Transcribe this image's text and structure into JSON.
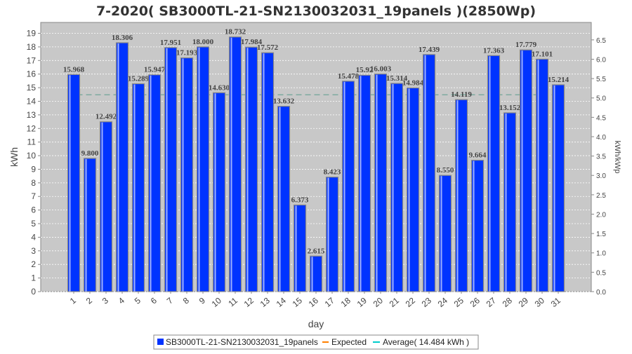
{
  "chart_data": {
    "type": "bar",
    "title": "7-2020( SB3000TL-21-SN2130032031_19panels )(2850Wp)",
    "xlabel": "day",
    "ylabel": "kWh",
    "y2label": "kWh/kWp",
    "ylim": [
      0,
      19.8
    ],
    "y2lim": [
      0,
      6.95
    ],
    "yticks": [
      0,
      1,
      2,
      3,
      4,
      5,
      6,
      7,
      8,
      9,
      10,
      11,
      12,
      13,
      14,
      15,
      16,
      17,
      18,
      19
    ],
    "y2ticks": [
      "0.0",
      "0.5",
      "1.0",
      "1.5",
      "2.0",
      "2.5",
      "3.0",
      "3.5",
      "4.0",
      "4.5",
      "5.0",
      "5.5",
      "6.0",
      "6.5"
    ],
    "categories": [
      "1",
      "2",
      "3",
      "4",
      "5",
      "6",
      "7",
      "8",
      "9",
      "10",
      "11",
      "12",
      "13",
      "14",
      "15",
      "16",
      "17",
      "18",
      "19",
      "20",
      "21",
      "22",
      "23",
      "24",
      "25",
      "26",
      "27",
      "28",
      "29",
      "30",
      "31"
    ],
    "series": [
      {
        "name": "SB3000TL-21-SN2130032031_19panels",
        "color": "#0033ff",
        "values": [
          15.968,
          9.8,
          12.492,
          18.306,
          15.289,
          15.947,
          17.951,
          17.193,
          18.0,
          14.63,
          18.732,
          17.984,
          17.572,
          13.632,
          6.373,
          2.615,
          8.423,
          15.478,
          15.92,
          16.003,
          15.314,
          14.984,
          17.439,
          8.55,
          14.119,
          9.664,
          17.363,
          13.152,
          17.779,
          17.101,
          15.214
        ],
        "labels": [
          "15.968",
          "9.800",
          "12.492",
          "18.306",
          "15.289",
          "15.947",
          "17.951",
          "17.193",
          "18.000",
          "14.630",
          "18.732",
          "17.984",
          "17.572",
          "13.632",
          "6.373",
          "2.615",
          "8.423",
          "15.478",
          "15.92",
          "16.003",
          "15.314",
          "14.984",
          "17.439",
          "8.550",
          "14.119",
          "9.664",
          "17.363",
          "13.152",
          "17.779",
          "17.101",
          "15.214"
        ]
      }
    ],
    "average": 14.484,
    "legend": [
      {
        "label": "SB3000TL-21-SN2130032031_19panels",
        "color": "#0033ff"
      },
      {
        "label": "Expected",
        "color": "#ff8000"
      },
      {
        "label": "Average( 14.484 kWh )",
        "color": "#00cccc"
      }
    ],
    "legend_position": "bottom",
    "grid": true
  }
}
